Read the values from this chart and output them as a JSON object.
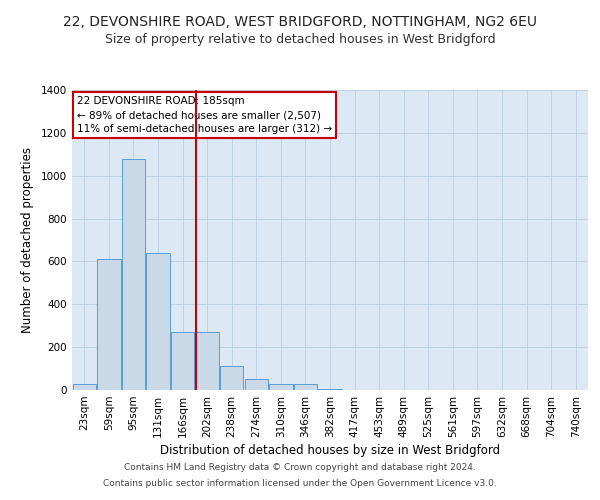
{
  "title": "22, DEVONSHIRE ROAD, WEST BRIDGFORD, NOTTINGHAM, NG2 6EU",
  "subtitle": "Size of property relative to detached houses in West Bridgford",
  "xlabel": "Distribution of detached houses by size in West Bridgford",
  "ylabel": "Number of detached properties",
  "footnote1": "Contains HM Land Registry data © Crown copyright and database right 2024.",
  "footnote2": "Contains public sector information licensed under the Open Government Licence v3.0.",
  "annotation_line1": "22 DEVONSHIRE ROAD: 185sqm",
  "annotation_line2": "← 89% of detached houses are smaller (2,507)",
  "annotation_line3": "11% of semi-detached houses are larger (312) →",
  "property_size": 185,
  "bar_color": "#c9d9e8",
  "bar_edge_color": "#5b9bd5",
  "vline_color": "#cc0000",
  "annotation_box_edge_color": "#cc0000",
  "background_color": "#ffffff",
  "plot_bg_color": "#dce9f5",
  "grid_color": "#b8cfe0",
  "categories": [
    "23sqm",
    "59sqm",
    "95sqm",
    "131sqm",
    "166sqm",
    "202sqm",
    "238sqm",
    "274sqm",
    "310sqm",
    "346sqm",
    "382sqm",
    "417sqm",
    "453sqm",
    "489sqm",
    "525sqm",
    "561sqm",
    "597sqm",
    "632sqm",
    "668sqm",
    "704sqm",
    "740sqm"
  ],
  "values": [
    30,
    610,
    1080,
    640,
    270,
    270,
    110,
    50,
    30,
    30,
    5,
    0,
    0,
    0,
    0,
    0,
    0,
    0,
    0,
    0,
    0
  ],
  "ylim": [
    0,
    1400
  ],
  "yticks": [
    0,
    200,
    400,
    600,
    800,
    1000,
    1200,
    1400
  ],
  "title_fontsize": 10,
  "subtitle_fontsize": 9,
  "xlabel_fontsize": 8.5,
  "ylabel_fontsize": 8.5,
  "tick_fontsize": 7.5,
  "annotation_fontsize": 7.5,
  "footnote_fontsize": 6.5
}
